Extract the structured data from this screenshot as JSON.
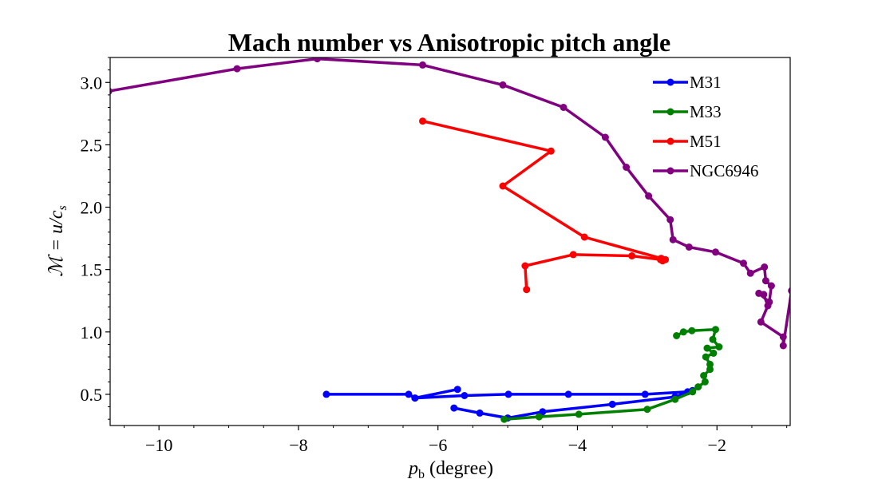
{
  "chart_data": {
    "type": "line",
    "title": "Mach number vs Anisotropic pitch angle",
    "xlabel": {
      "main": "p",
      "sub": "b",
      "rest": " (degree)"
    },
    "ylabel": {
      "main": "ℳ = u/c",
      "sub": "s"
    },
    "xlim": [
      -10.7,
      -0.95
    ],
    "ylim": [
      0.25,
      3.2
    ],
    "xticks": [
      -10,
      -8,
      -6,
      -4,
      -2
    ],
    "xtick_labels": [
      "−10",
      "−8",
      "−6",
      "−4",
      "−2"
    ],
    "yticks": [
      0.5,
      1.0,
      1.5,
      2.0,
      2.5,
      3.0
    ],
    "ytick_labels": [
      "0.5",
      "1.0",
      "1.5",
      "2.0",
      "2.5",
      "3.0"
    ],
    "grid": false,
    "legend_position": "top-right",
    "series": [
      {
        "name": "M31",
        "color": "#0000ff",
        "x": [
          -7.6,
          -6.42,
          -6.33,
          -5.72,
          -6.33,
          -5.62,
          -4.99,
          -4.13,
          -3.03,
          -2.42,
          -2.35,
          -2.6,
          -3.5,
          -4.5,
          -5.0,
          -5.4,
          -5.77
        ],
        "y": [
          0.5,
          0.5,
          0.47,
          0.54,
          0.47,
          0.49,
          0.5,
          0.5,
          0.5,
          0.52,
          0.53,
          0.48,
          0.42,
          0.36,
          0.31,
          0.35,
          0.39
        ]
      },
      {
        "name": "M33",
        "color": "#008000",
        "x": [
          -5.05,
          -4.55,
          -3.98,
          -3.0,
          -2.6,
          -2.35,
          -2.27,
          -2.17,
          -2.19,
          -2.1,
          -2.1,
          -2.16,
          -2.05,
          -2.14,
          -1.97,
          -2.06,
          -2.02,
          -2.36,
          -2.48,
          -2.58
        ],
        "y": [
          0.3,
          0.32,
          0.34,
          0.38,
          0.46,
          0.52,
          0.56,
          0.6,
          0.65,
          0.7,
          0.74,
          0.8,
          0.83,
          0.87,
          0.88,
          0.94,
          1.02,
          1.01,
          1.0,
          0.97
        ],
        "extra_x": [
          -4.78,
          -4.3,
          -3.6,
          -2.85,
          -2.47,
          -2.27,
          -2.2,
          -2.15,
          -2.1,
          -2.07
        ],
        "extra_y": [
          0.33,
          0.31,
          0.33,
          0.42,
          0.5,
          0.55,
          0.57,
          0.63,
          0.68,
          0.78
        ]
      },
      {
        "name": "M51",
        "color": "#ff0000",
        "x": [
          -6.22,
          -4.38,
          -5.07,
          -3.9,
          -2.8,
          -2.78,
          -2.74,
          -2.81,
          -3.22,
          -4.06,
          -4.75,
          -4.73
        ],
        "y": [
          2.69,
          2.45,
          2.17,
          1.76,
          1.59,
          1.57,
          1.58,
          1.58,
          1.61,
          1.62,
          1.53,
          1.34
        ],
        "extra_x": [],
        "extra_y": []
      },
      {
        "name": "NGC6946",
        "color": "#800080",
        "x": [
          -10.72,
          -8.88,
          -7.73,
          -6.22,
          -5.07,
          -4.2,
          -3.6,
          -3.3,
          -2.98,
          -2.67,
          -2.63,
          -2.4,
          -2.02,
          -1.62,
          -1.52,
          -1.32,
          -1.3,
          -1.22,
          -1.25,
          -1.4,
          -1.33,
          -1.27,
          -1.37,
          -1.05,
          -1.05,
          -0.93
        ],
        "y": [
          2.93,
          3.11,
          3.19,
          3.14,
          2.98,
          2.8,
          2.56,
          2.32,
          2.09,
          1.9,
          1.74,
          1.68,
          1.64,
          1.55,
          1.47,
          1.52,
          1.41,
          1.37,
          1.24,
          1.31,
          1.3,
          1.21,
          1.08,
          0.96,
          0.89,
          1.33
        ],
        "order_note": ""
      }
    ]
  }
}
